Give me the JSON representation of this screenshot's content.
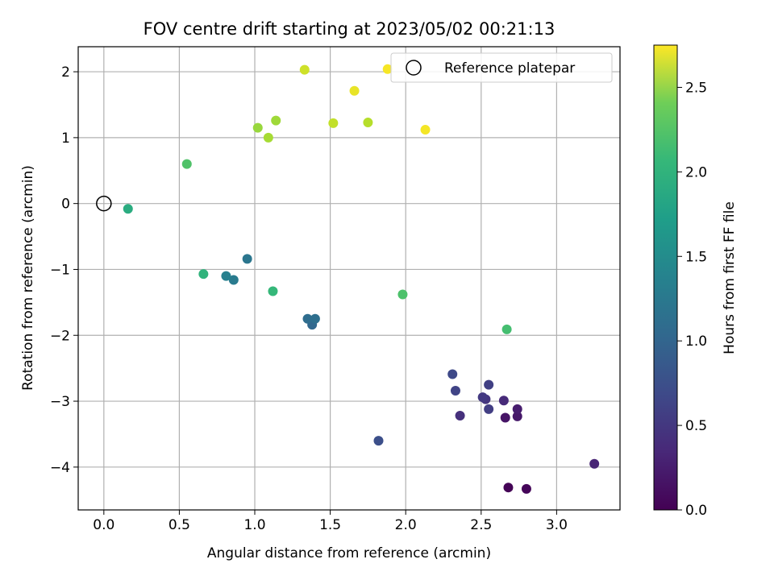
{
  "chart_data": {
    "type": "scatter",
    "title": "FOV centre drift starting at 2023/05/02 00:21:13",
    "xlabel": "Angular distance from reference (arcmin)",
    "ylabel": "Rotation from reference (arcmin)",
    "xlim": [
      -0.17,
      3.42
    ],
    "ylim": [
      -4.65,
      2.38
    ],
    "xticks": [
      0.0,
      0.5,
      1.0,
      1.5,
      2.0,
      2.5,
      3.0
    ],
    "xtick_labels": [
      "0.0",
      "0.5",
      "1.0",
      "1.5",
      "2.0",
      "2.5",
      "3.0"
    ],
    "yticks": [
      2,
      1,
      0,
      -1,
      -2,
      -3,
      -4
    ],
    "ytick_labels": [
      "2",
      "1",
      "0",
      "−1",
      "−2",
      "−3",
      "−4"
    ],
    "grid": true,
    "legend": {
      "placement": "top-right",
      "entries": [
        "Reference platepar"
      ]
    },
    "reference_point": {
      "x": 0.0,
      "y": 0.0
    },
    "colormap": "viridis",
    "colorbar": {
      "label": "Hours from first FF file",
      "range": [
        0.0,
        2.75
      ],
      "ticks": [
        0.0,
        0.5,
        1.0,
        1.5,
        2.0,
        2.5
      ],
      "tick_labels": [
        "0.0",
        "0.5",
        "1.0",
        "1.5",
        "2.0",
        "2.5"
      ]
    },
    "points": [
      {
        "x": 2.68,
        "y": -4.31,
        "c": 0.02
      },
      {
        "x": 2.8,
        "y": -4.33,
        "c": 0.04
      },
      {
        "x": 2.66,
        "y": -3.25,
        "c": 0.15
      },
      {
        "x": 2.74,
        "y": -3.23,
        "c": 0.18
      },
      {
        "x": 2.74,
        "y": -3.12,
        "c": 0.22
      },
      {
        "x": 3.25,
        "y": -3.95,
        "c": 0.28
      },
      {
        "x": 2.65,
        "y": -2.99,
        "c": 0.33
      },
      {
        "x": 2.36,
        "y": -3.22,
        "c": 0.38
      },
      {
        "x": 2.53,
        "y": -2.97,
        "c": 0.42
      },
      {
        "x": 2.51,
        "y": -2.94,
        "c": 0.46
      },
      {
        "x": 2.55,
        "y": -3.12,
        "c": 0.5
      },
      {
        "x": 2.55,
        "y": -2.75,
        "c": 0.52
      },
      {
        "x": 2.33,
        "y": -2.84,
        "c": 0.56
      },
      {
        "x": 2.31,
        "y": -2.59,
        "c": 0.6
      },
      {
        "x": 1.82,
        "y": -3.6,
        "c": 0.66
      },
      {
        "x": 1.38,
        "y": -1.84,
        "c": 0.92
      },
      {
        "x": 1.35,
        "y": -1.75,
        "c": 0.97
      },
      {
        "x": 1.4,
        "y": -1.75,
        "c": 1.0
      },
      {
        "x": 0.95,
        "y": -0.84,
        "c": 1.08
      },
      {
        "x": 0.86,
        "y": -1.16,
        "c": 1.14
      },
      {
        "x": 0.81,
        "y": -1.1,
        "c": 1.2
      },
      {
        "x": 0.16,
        "y": -0.08,
        "c": 1.7
      },
      {
        "x": 0.66,
        "y": -1.07,
        "c": 1.78
      },
      {
        "x": 1.12,
        "y": -1.33,
        "c": 1.83
      },
      {
        "x": 2.67,
        "y": -1.91,
        "c": 1.92
      },
      {
        "x": 1.98,
        "y": -1.38,
        "c": 1.96
      },
      {
        "x": 0.55,
        "y": 0.6,
        "c": 1.98
      },
      {
        "x": 1.02,
        "y": 1.15,
        "c": 2.32
      },
      {
        "x": 1.14,
        "y": 1.26,
        "c": 2.35
      },
      {
        "x": 1.09,
        "y": 1.0,
        "c": 2.38
      },
      {
        "x": 1.75,
        "y": 1.23,
        "c": 2.45
      },
      {
        "x": 1.52,
        "y": 1.22,
        "c": 2.5
      },
      {
        "x": 1.33,
        "y": 2.03,
        "c": 2.55
      },
      {
        "x": 1.66,
        "y": 1.71,
        "c": 2.66
      },
      {
        "x": 2.13,
        "y": 1.12,
        "c": 2.71
      },
      {
        "x": 1.88,
        "y": 2.04,
        "c": 2.72
      }
    ]
  }
}
